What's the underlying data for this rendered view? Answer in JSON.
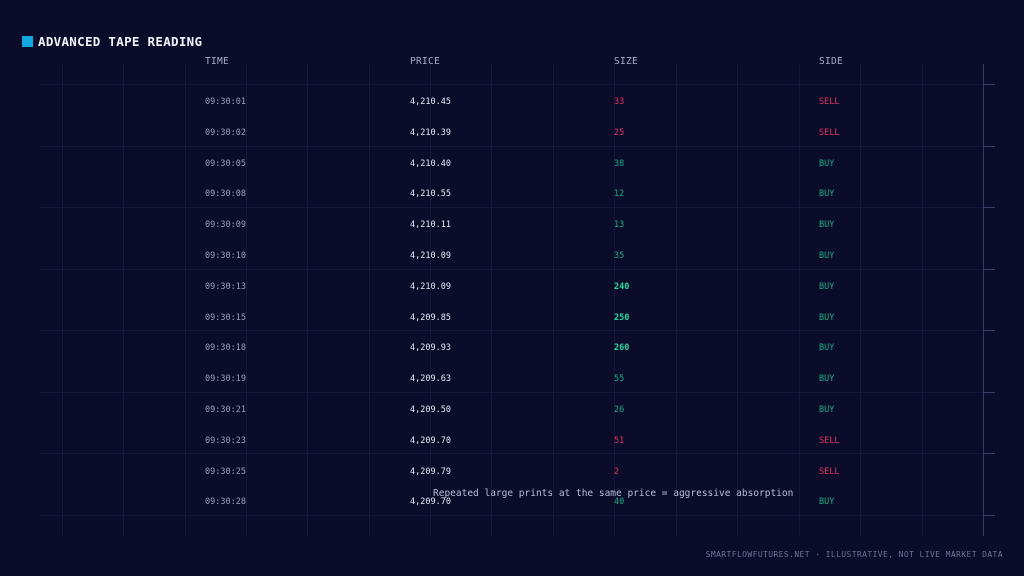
{
  "title": "ADVANCED TAPE READING",
  "accent_color": "#13a9e0",
  "columns": {
    "time": "TIME",
    "price": "PRICE",
    "size": "SIZE",
    "side": "SIDE"
  },
  "rows": [
    {
      "time": "09:30:01",
      "price": "4,210.45",
      "size": "33",
      "side": "SELL"
    },
    {
      "time": "09:30:02",
      "price": "4,210.39",
      "size": "25",
      "side": "SELL"
    },
    {
      "time": "09:30:05",
      "price": "4,210.40",
      "size": "38",
      "side": "BUY"
    },
    {
      "time": "09:30:08",
      "price": "4,210.55",
      "size": "12",
      "side": "BUY"
    },
    {
      "time": "09:30:09",
      "price": "4,210.11",
      "size": "13",
      "side": "BUY"
    },
    {
      "time": "09:30:10",
      "price": "4,210.09",
      "size": "35",
      "side": "BUY"
    },
    {
      "time": "09:30:13",
      "price": "4,210.09",
      "size": "240",
      "side": "BUY"
    },
    {
      "time": "09:30:15",
      "price": "4,209.85",
      "size": "250",
      "side": "BUY"
    },
    {
      "time": "09:30:18",
      "price": "4,209.93",
      "size": "260",
      "side": "BUY"
    },
    {
      "time": "09:30:19",
      "price": "4,209.63",
      "size": "55",
      "side": "BUY"
    },
    {
      "time": "09:30:21",
      "price": "4,209.50",
      "size": "26",
      "side": "BUY"
    },
    {
      "time": "09:30:23",
      "price": "4,209.70",
      "size": "51",
      "side": "SELL"
    },
    {
      "time": "09:30:25",
      "price": "4,209.79",
      "size": "2",
      "side": "SELL"
    },
    {
      "time": "09:30:28",
      "price": "4,209.70",
      "size": "40",
      "side": "BUY"
    }
  ],
  "annotation": "Repeated large prints at the same price = aggressive absorption",
  "footer": "SMARTFLOWFUTURES.NET · ILLUSTRATIVE, NOT LIVE MARKET DATA"
}
